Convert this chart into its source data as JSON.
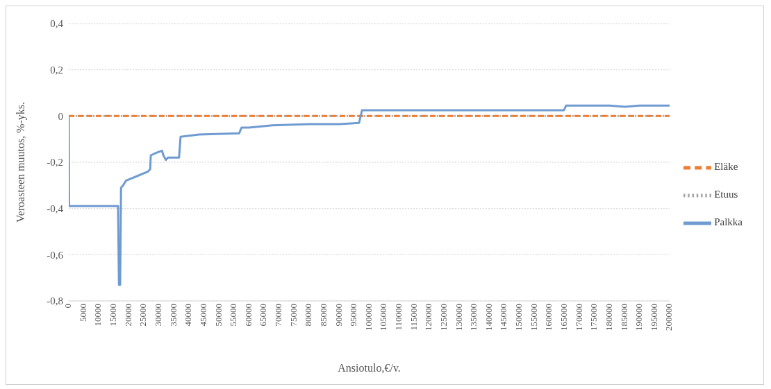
{
  "chart_data": {
    "type": "line",
    "xlabel": "Ansiotulo,€/v.",
    "ylabel": "Veroasteen muutos, %-yks.",
    "xlim": [
      0,
      200000
    ],
    "xticks": [
      0,
      5000,
      10000,
      15000,
      20000,
      25000,
      30000,
      35000,
      40000,
      45000,
      50000,
      55000,
      60000,
      65000,
      70000,
      75000,
      80000,
      85000,
      90000,
      95000,
      100000,
      105000,
      110000,
      115000,
      120000,
      125000,
      130000,
      135000,
      140000,
      145000,
      150000,
      155000,
      160000,
      165000,
      170000,
      175000,
      180000,
      185000,
      190000,
      195000,
      200000
    ],
    "ylim": [
      -0.8,
      0.4
    ],
    "yticks": [
      {
        "value": -0.8,
        "label": "-0,8"
      },
      {
        "value": -0.6,
        "label": "-0,6"
      },
      {
        "value": -0.4,
        "label": "-0,4"
      },
      {
        "value": -0.2,
        "label": "-0,2"
      },
      {
        "value": 0,
        "label": "0"
      },
      {
        "value": 0.2,
        "label": "0,2"
      },
      {
        "value": 0.4,
        "label": "0,4"
      }
    ],
    "grid": "y",
    "legend": "right",
    "marker": "none",
    "series": [
      {
        "name": "Palkka",
        "color": "#6f9bd1",
        "line_style": "solid",
        "x": [
          0,
          100,
          16400,
          16700,
          17100,
          17400,
          18100,
          19000,
          22700,
          26400,
          27100,
          27300,
          29000,
          31000,
          31500,
          32300,
          33000,
          36700,
          37200,
          43300,
          56700,
          57500,
          60000,
          67700,
          80000,
          90000,
          96600,
          97600,
          120000,
          164800,
          165500,
          180000,
          185000,
          190000,
          200000
        ],
        "values": [
          0,
          -0.39,
          -0.39,
          -0.73,
          -0.73,
          -0.31,
          -0.3,
          -0.28,
          -0.26,
          -0.24,
          -0.23,
          -0.17,
          -0.16,
          -0.15,
          -0.17,
          -0.19,
          -0.18,
          -0.18,
          -0.09,
          -0.08,
          -0.075,
          -0.05,
          -0.05,
          -0.04,
          -0.035,
          -0.035,
          -0.03,
          0.025,
          0.025,
          0.025,
          0.045,
          0.045,
          0.04,
          0.045,
          0.045
        ]
      },
      {
        "name": "Eläke",
        "color": "#ed7d31",
        "line_style": "dashed",
        "x": [
          0,
          200000
        ],
        "values": [
          0,
          0
        ]
      },
      {
        "name": "Etuus",
        "color": "#a5a5a5",
        "line_style": "dotted",
        "x": [
          0,
          200000
        ],
        "values": [
          0,
          0
        ]
      }
    ]
  }
}
